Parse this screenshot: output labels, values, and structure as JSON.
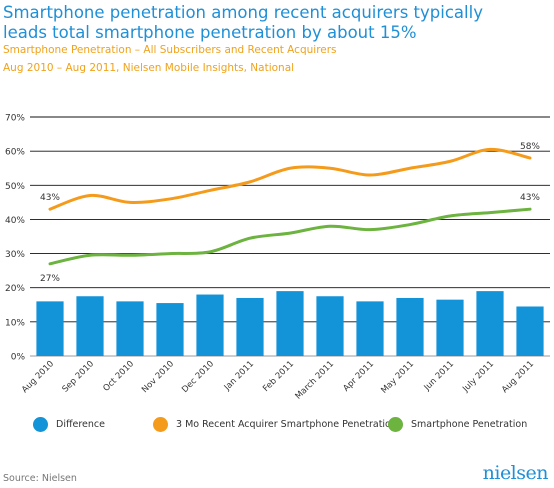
{
  "header": {
    "title": "Smartphone penetration among recent acquirers typically leads total smartphone penetration by about 15%",
    "subtitle1": "Smartphone Penetration – All Subscribers and Recent Acquirers",
    "subtitle2": "Aug 2010 – Aug 2011, Nielsen Mobile Insights, National"
  },
  "footer": {
    "source": "Source: Nielsen",
    "logo": "nielsen"
  },
  "colors": {
    "difference": "#1393d8",
    "recent": "#f59b1c",
    "total": "#6cb33f",
    "title": "#1f8fd6"
  },
  "chart_data": {
    "type": "bar+line",
    "categories": [
      "Aug 2010",
      "Sep 2010",
      "Oct 2010",
      "Nov 2010",
      "Dec 2010",
      "Jan 2011",
      "Feb 2011",
      "March 2011",
      "Apr 2011",
      "May 2011",
      "Jun 2011",
      "July 2011",
      "Aug 2011"
    ],
    "ylim": [
      0,
      70
    ],
    "yticks": [
      "0%",
      "10%",
      "20%",
      "30%",
      "40%",
      "50%",
      "60%",
      "70%"
    ],
    "grid": true,
    "legend_position": "bottom",
    "series": [
      {
        "name": "Difference",
        "type": "bar",
        "values": [
          16,
          17.5,
          16,
          15.5,
          18,
          17,
          19,
          17.5,
          16,
          17,
          16.5,
          19,
          14.5
        ]
      },
      {
        "name": "3 Mo Recent Acquirer Smartphone Penetration",
        "type": "line",
        "values": [
          43,
          47,
          45,
          46,
          48.5,
          51,
          55,
          55,
          53,
          55,
          57,
          60.5,
          58
        ]
      },
      {
        "name": "Smartphone Penetration",
        "type": "line",
        "values": [
          27,
          29.5,
          29.5,
          30,
          30.5,
          34.5,
          36,
          38,
          37,
          38.5,
          41,
          42,
          43
        ]
      }
    ],
    "annotations": [
      {
        "series": "3 Mo Recent Acquirer Smartphone Penetration",
        "index": 0,
        "text": "43%"
      },
      {
        "series": "3 Mo Recent Acquirer Smartphone Penetration",
        "index": 12,
        "text": "58%"
      },
      {
        "series": "Smartphone Penetration",
        "index": 0,
        "text": "27%"
      },
      {
        "series": "Smartphone Penetration",
        "index": 12,
        "text": "43%"
      }
    ]
  }
}
